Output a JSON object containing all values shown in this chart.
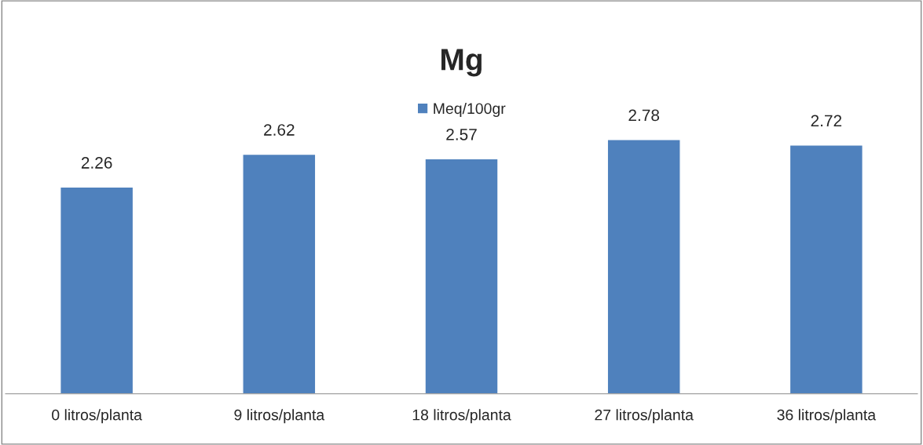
{
  "chart_data": {
    "type": "bar",
    "title": "Mg",
    "categories": [
      "0 litros/planta",
      "9 litros/planta",
      "18 litros/planta",
      "27 litros/planta",
      "36 litros/planta"
    ],
    "series": [
      {
        "name": "Meq/100gr",
        "color": "#4f81bd",
        "values": [
          2.26,
          2.62,
          2.57,
          2.78,
          2.72
        ]
      }
    ],
    "data_labels": true,
    "legend": "top",
    "grid": false
  }
}
